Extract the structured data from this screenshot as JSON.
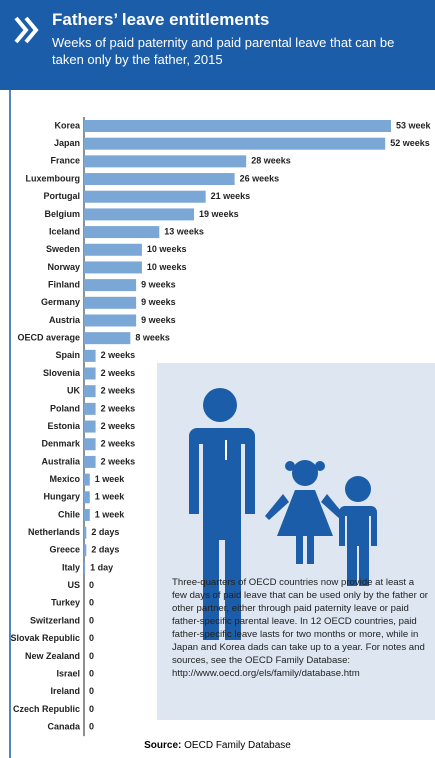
{
  "chart_data": {
    "type": "bar",
    "orientation": "horizontal",
    "title": "Fathers’ leave entitlements",
    "subtitle": "Weeks of paid paternity and paid parental leave that can be taken only by the father, 2015",
    "categories": [
      "Korea",
      "Japan",
      "France",
      "Luxembourg",
      "Portugal",
      "Belgium",
      "Iceland",
      "Sweden",
      "Norway",
      "Finland",
      "Germany",
      "Austria",
      "OECD average",
      "Spain",
      "Slovenia",
      "UK",
      "Poland",
      "Estonia",
      "Denmark",
      "Australia",
      "Mexico",
      "Hungary",
      "Chile",
      "Netherlands",
      "Greece",
      "Italy",
      "US",
      "Turkey",
      "Switzerland",
      "Slovak Republic",
      "New Zealand",
      "Israel",
      "Ireland",
      "Czech Republic",
      "Canada"
    ],
    "values": [
      53,
      52,
      28,
      26,
      21,
      19,
      13,
      10,
      10,
      9,
      9,
      9,
      8,
      2,
      2,
      2,
      2,
      2,
      2,
      2,
      1,
      1,
      1,
      0.4,
      0.4,
      0.2,
      0,
      0,
      0,
      0,
      0,
      0,
      0,
      0,
      0
    ],
    "value_labels": [
      "53 week",
      "52 weeks",
      "28 weeks",
      "26 weeks",
      "21 weeks",
      "19 weeks",
      "13 weeks",
      "10 weeks",
      "10 weeks",
      "9 weeks",
      "9 weeks",
      "9 weeks",
      "8 weeks",
      "2 weeks",
      "2 weeks",
      "2 weeks",
      "2 weeks",
      "2 weeks",
      "2 weeks",
      "2 weeks",
      "1 week",
      "1 week",
      "1 week",
      "2 days",
      "2 days",
      "1 day",
      "0",
      "0",
      "0",
      "0",
      "0",
      "0",
      "0",
      "0",
      "0"
    ],
    "color": "#7ba7d7",
    "note": "Three-quarters of OECD countries now provide at least a few days of paid leave that can be used only by the father or other partner, either through paid paternity leave or paid father-specific parental leave. In 12 OECD countries, paid father-specific leave lasts for two months or more, while in Japan and Korea dads can take up to a year. For notes and sources, see the OECD Family Database: http://www.oecd.org/els/family/database.htm",
    "source_label": "Source:",
    "source": "OECD Family Database"
  }
}
